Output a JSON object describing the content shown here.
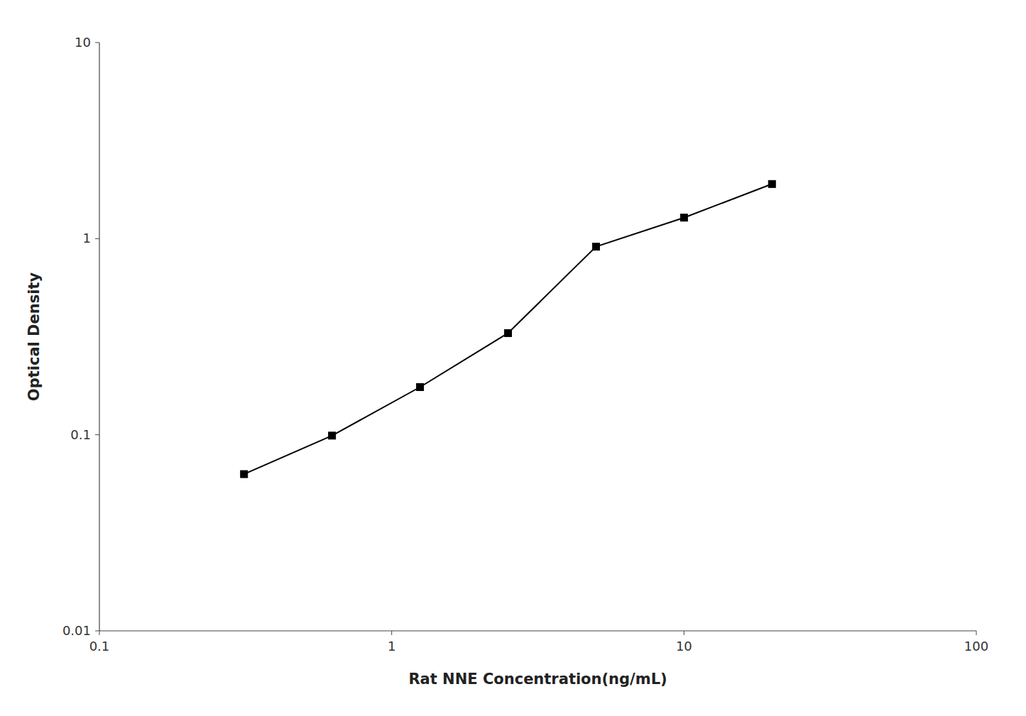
{
  "chart_data": {
    "type": "line",
    "x": [
      0.3125,
      0.625,
      1.25,
      2.5,
      5.0,
      10.0,
      20.0
    ],
    "values": [
      0.063,
      0.099,
      0.175,
      0.33,
      0.91,
      1.28,
      1.9
    ],
    "xlabel": "Rat NNE Concentration(ng/mL)",
    "ylabel": "Optical Density",
    "xlim": [
      0.1,
      100
    ],
    "ylim": [
      0.01,
      10
    ],
    "xticks": [
      0.1,
      1,
      10,
      100
    ],
    "yticks": [
      0.01,
      0.1,
      1,
      10
    ],
    "log": true,
    "grid": false,
    "color": "#000000",
    "marker": "square"
  }
}
